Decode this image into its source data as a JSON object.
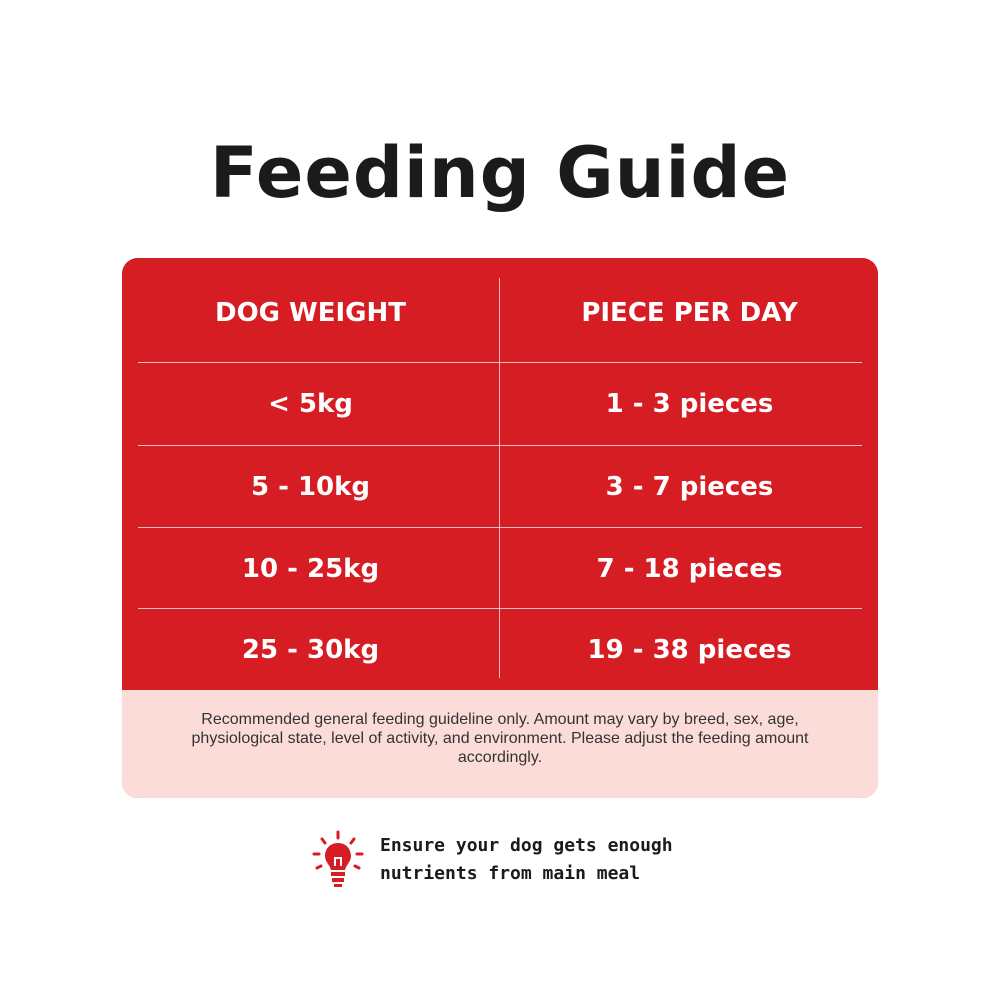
{
  "title": "Feeding Guide",
  "colors": {
    "card_red": "#d71d24",
    "note_bg": "#fbdcd8",
    "text_dark": "#1b1b1b",
    "text_white": "#ffffff"
  },
  "table": {
    "headers": [
      "DOG WEIGHT",
      "PIECE PER DAY"
    ],
    "rows": [
      [
        "< 5kg",
        "1 - 3 pieces"
      ],
      [
        "5 - 10kg",
        "3 - 7 pieces"
      ],
      [
        "10 - 25kg",
        "7 - 18 pieces"
      ],
      [
        "25 - 30kg",
        "19 - 38 pieces"
      ]
    ]
  },
  "note": "Recommended general feeding guideline only. Amount may vary by breed, sex, age, physiological state, level of activity, and environment. Please adjust the feeding amount accordingly.",
  "tip": {
    "icon": "lightbulb-icon",
    "line1": "Ensure your dog gets enough",
    "line2": "nutrients from main meal"
  }
}
